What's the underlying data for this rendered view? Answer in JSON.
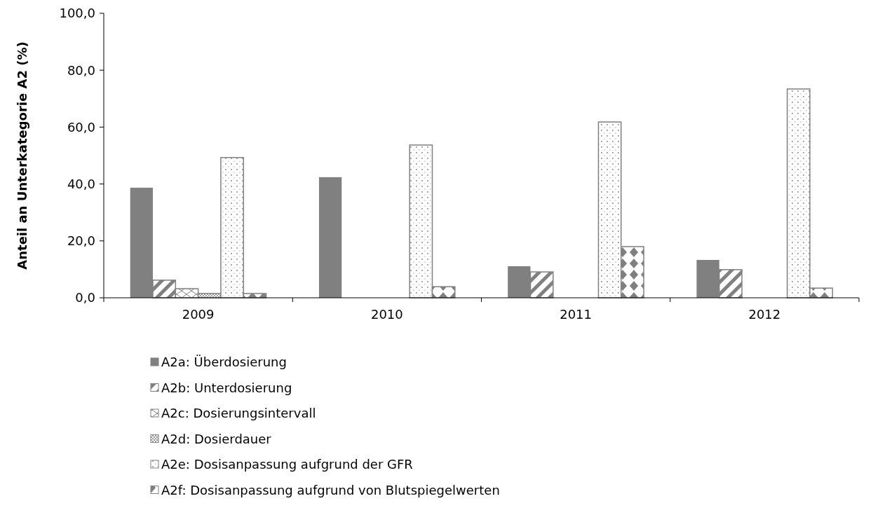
{
  "chart_data": {
    "type": "bar",
    "ylabel": "Anteil an Unterkategorie A2 (%)",
    "categories": [
      "2009",
      "2010",
      "2011",
      "2012"
    ],
    "series": [
      {
        "name": "A2a: Überdosierung",
        "color": "#808080",
        "values": [
          38.7,
          42.4,
          11.1,
          13.3
        ]
      },
      {
        "name": "A2b: Unterdosierung",
        "color": "#808080",
        "values": [
          6.2,
          0,
          9.1,
          9.9
        ]
      },
      {
        "name": "A2c: Dosierungsintervall",
        "color": "#808080",
        "values": [
          3.2,
          0,
          0,
          0
        ]
      },
      {
        "name": "A2d: Dosierdauer",
        "color": "#808080",
        "values": [
          1.5,
          0,
          0,
          0
        ]
      },
      {
        "name": "A2e: Dosisanpassung aufgrund der GFR",
        "color": "#808080",
        "values": [
          49.3,
          53.7,
          61.8,
          73.4
        ]
      },
      {
        "name": "A2f: Dosisanpassung aufgrund von Blutspiegelwerten",
        "color": "#808080",
        "values": [
          1.5,
          3.9,
          18.0,
          3.4
        ]
      }
    ],
    "ylim": [
      0,
      100
    ],
    "yticks": [
      {
        "value": 0,
        "label": "0,0"
      },
      {
        "value": 20,
        "label": "20,0"
      },
      {
        "value": 40,
        "label": "40,0"
      },
      {
        "value": 60,
        "label": "60,0"
      },
      {
        "value": 80,
        "label": "80,0"
      },
      {
        "value": 100,
        "label": "100,0"
      }
    ],
    "grid": false,
    "legend": "bottom"
  }
}
